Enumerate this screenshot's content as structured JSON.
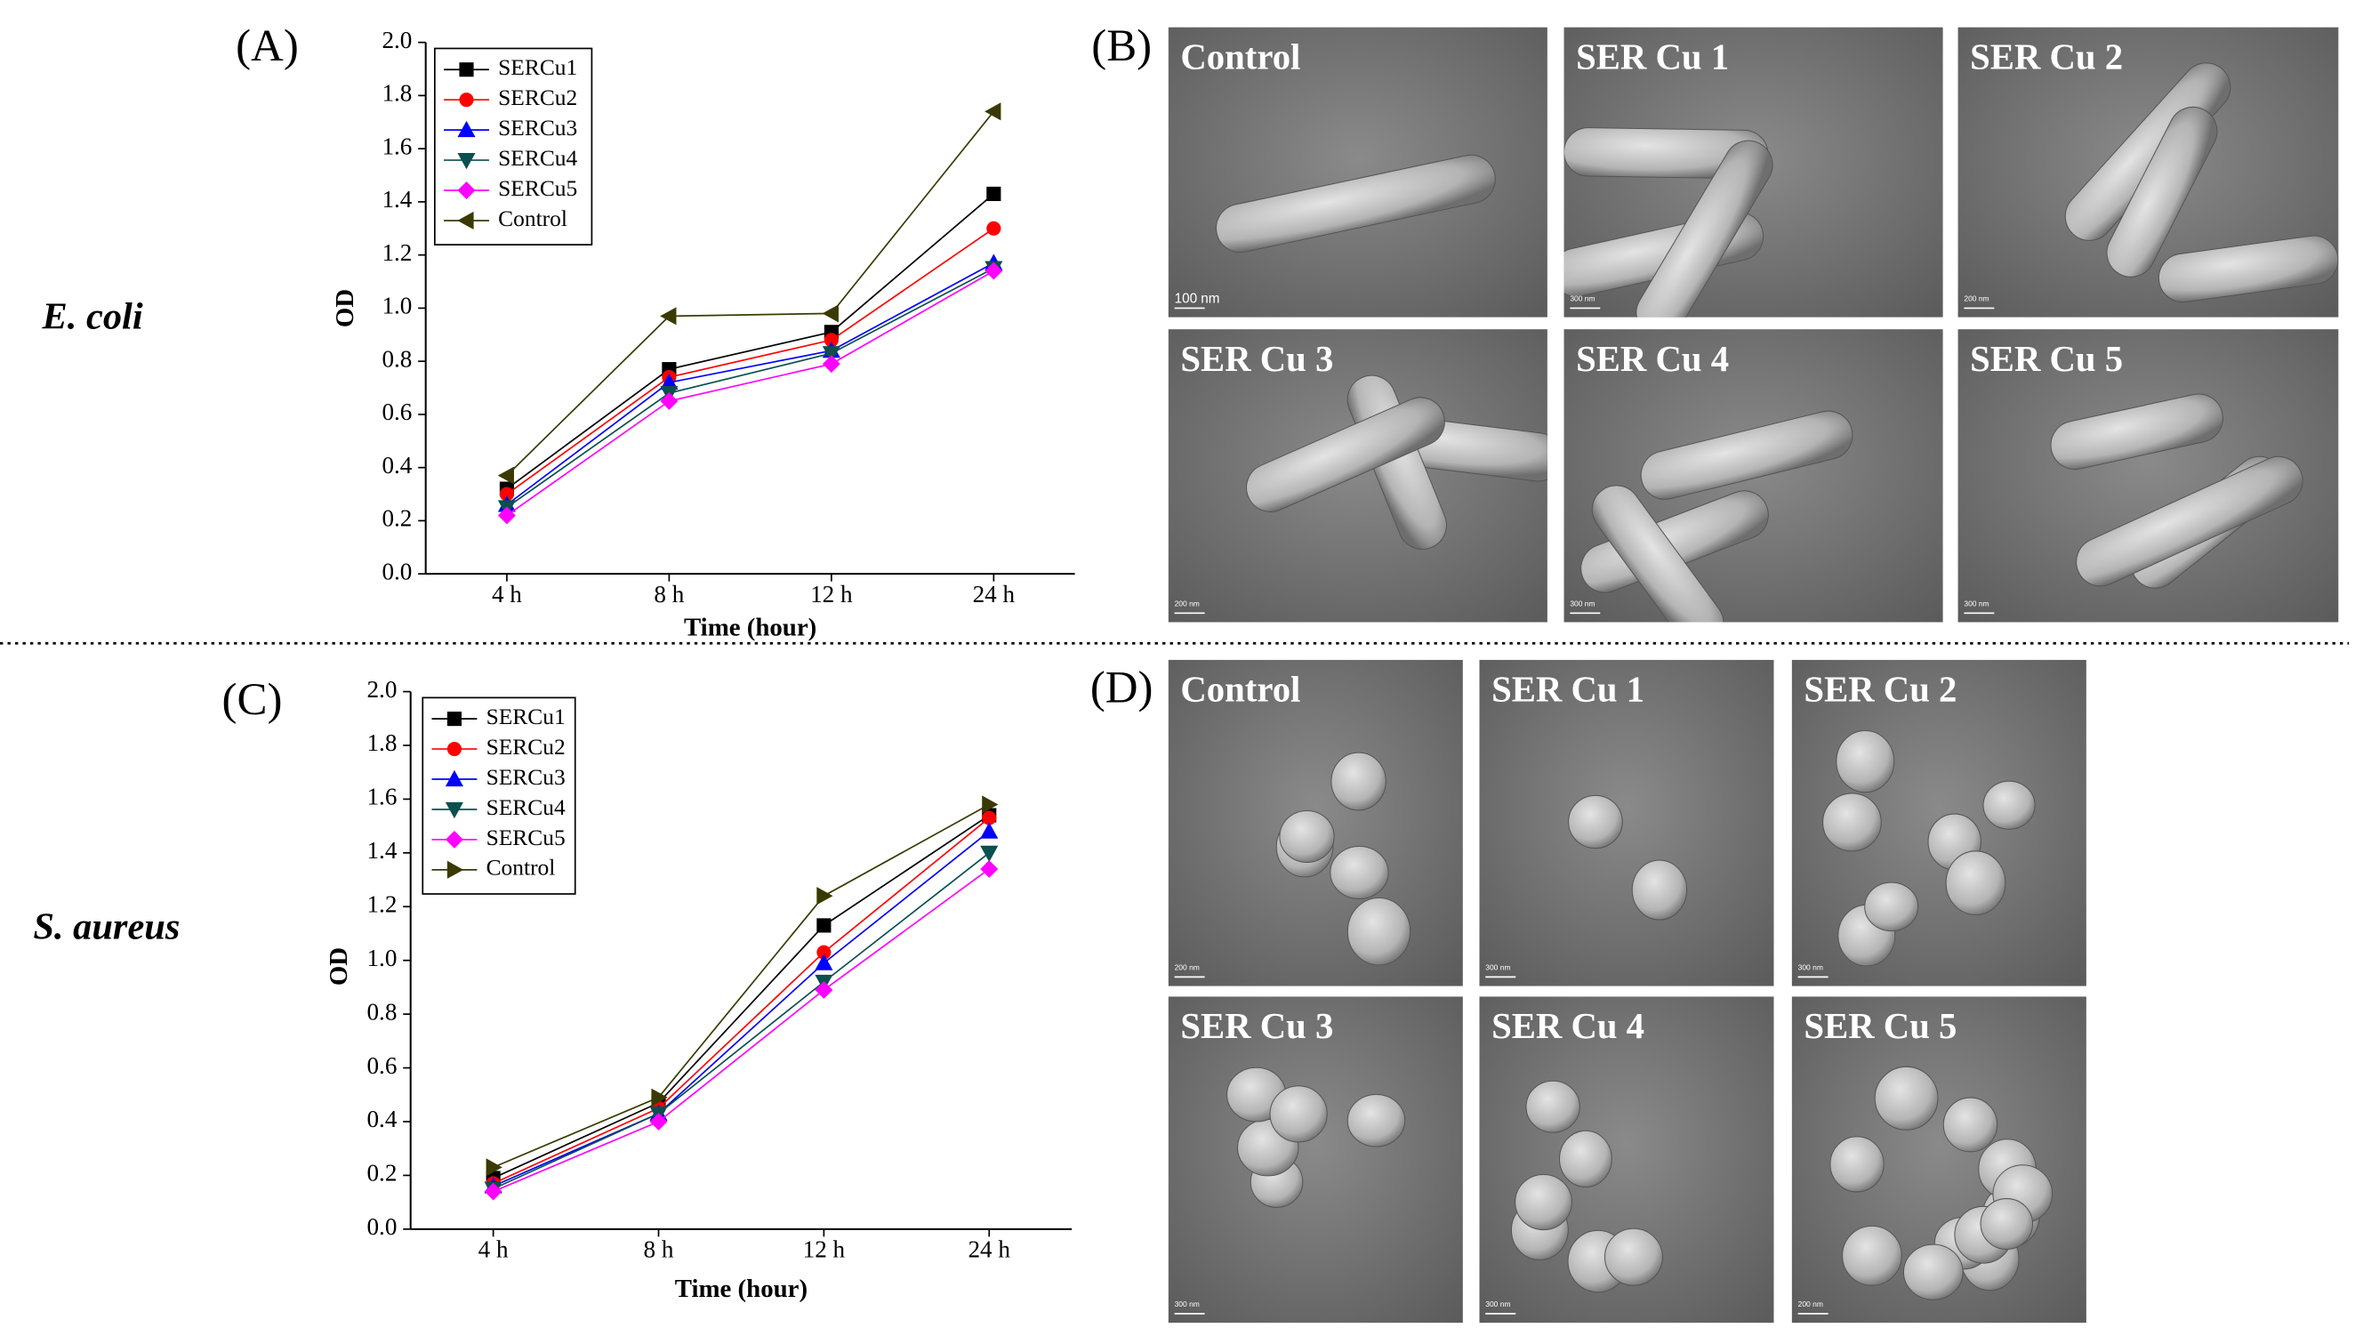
{
  "figure": {
    "panel_labels": [
      "(A)",
      "(B)",
      "(C)",
      "(D)"
    ],
    "organisms": [
      "E. coli",
      "S. aureus"
    ],
    "sem_b": [
      {
        "title": "Control",
        "scale": "100 nm"
      },
      {
        "title": "SER Cu 1",
        "scale": "300 nm"
      },
      {
        "title": "SER Cu 2",
        "scale": "200 nm"
      },
      {
        "title": "SER Cu 3",
        "scale": "200 nm"
      },
      {
        "title": "SER Cu 4",
        "scale": "300 nm"
      },
      {
        "title": "SER Cu 5",
        "scale": "300 nm"
      }
    ],
    "sem_d": [
      {
        "title": "Control",
        "scale": "200 nm"
      },
      {
        "title": "SER Cu 1",
        "scale": "300 nm"
      },
      {
        "title": "SER Cu 2",
        "scale": "300 nm"
      },
      {
        "title": "SER Cu 3",
        "scale": "300 nm"
      },
      {
        "title": "SER Cu 4",
        "scale": "300 nm"
      },
      {
        "title": "SER Cu 5",
        "scale": "200 nm"
      }
    ]
  },
  "chart_data": [
    {
      "type": "line",
      "x_label": "Time (hour)",
      "y_label": "OD",
      "categories": [
        "4 h",
        "8 h",
        "12 h",
        "24 h"
      ],
      "ylim": [
        0,
        2.0
      ],
      "yticks": [
        {
          "value": 0,
          "label": "0.0"
        },
        0.2,
        0.4,
        0.6,
        0.8,
        {
          "value": 1.0,
          "label": "1.0"
        },
        1.2,
        1.4,
        1.6,
        1.8,
        {
          "value": 2.0,
          "label": "2.0"
        }
      ],
      "grid": false,
      "legend": "upper left",
      "series": [
        {
          "name": "SERCu1",
          "color": "#000000",
          "marker": "square",
          "values": [
            0.32,
            0.77,
            0.91,
            1.43
          ]
        },
        {
          "name": "SERCu2",
          "color": "#ff0000",
          "marker": "circle",
          "values": [
            0.3,
            0.74,
            0.88,
            1.3
          ]
        },
        {
          "name": "SERCu3",
          "color": "#0000ff",
          "marker": "triangle-up",
          "values": [
            0.26,
            0.72,
            0.84,
            1.17
          ]
        },
        {
          "name": "SERCu4",
          "color": "#0b4f4f",
          "marker": "triangle-down",
          "values": [
            0.25,
            0.68,
            0.83,
            1.15
          ]
        },
        {
          "name": "SERCu5",
          "color": "#ff00ff",
          "marker": "diamond",
          "values": [
            0.22,
            0.65,
            0.79,
            1.14
          ]
        },
        {
          "name": "Control",
          "color": "#3a3a00",
          "marker": "triangle-left",
          "values": [
            0.37,
            0.97,
            0.98,
            1.74
          ]
        }
      ]
    },
    {
      "type": "line",
      "x_label": "Time (hour)",
      "y_label": "OD",
      "categories": [
        "4 h",
        "8 h",
        "12 h",
        "24 h"
      ],
      "ylim": [
        0,
        2.0
      ],
      "yticks": [
        {
          "value": 0,
          "label": "0.0"
        },
        0.2,
        0.4,
        0.6,
        0.8,
        {
          "value": 1.0,
          "label": "1.0"
        },
        1.2,
        1.4,
        1.6,
        1.8,
        {
          "value": 2.0,
          "label": "2.0"
        }
      ],
      "grid": false,
      "legend": "upper left",
      "series": [
        {
          "name": "SERCu1",
          "color": "#000000",
          "marker": "square",
          "values": [
            0.19,
            0.47,
            1.13,
            1.54
          ]
        },
        {
          "name": "SERCu2",
          "color": "#ff0000",
          "marker": "circle",
          "values": [
            0.17,
            0.45,
            1.03,
            1.53
          ]
        },
        {
          "name": "SERCu3",
          "color": "#0000ff",
          "marker": "triangle-up",
          "values": [
            0.16,
            0.43,
            0.99,
            1.48
          ]
        },
        {
          "name": "SERCu4",
          "color": "#0b4f4f",
          "marker": "triangle-down",
          "values": [
            0.15,
            0.43,
            0.92,
            1.4
          ]
        },
        {
          "name": "SERCu5",
          "color": "#ff00ff",
          "marker": "diamond",
          "values": [
            0.14,
            0.4,
            0.89,
            1.34
          ]
        },
        {
          "name": "Control",
          "color": "#3a3a00",
          "marker": "triangle-right",
          "values": [
            0.23,
            0.49,
            1.24,
            1.58
          ]
        }
      ]
    }
  ]
}
